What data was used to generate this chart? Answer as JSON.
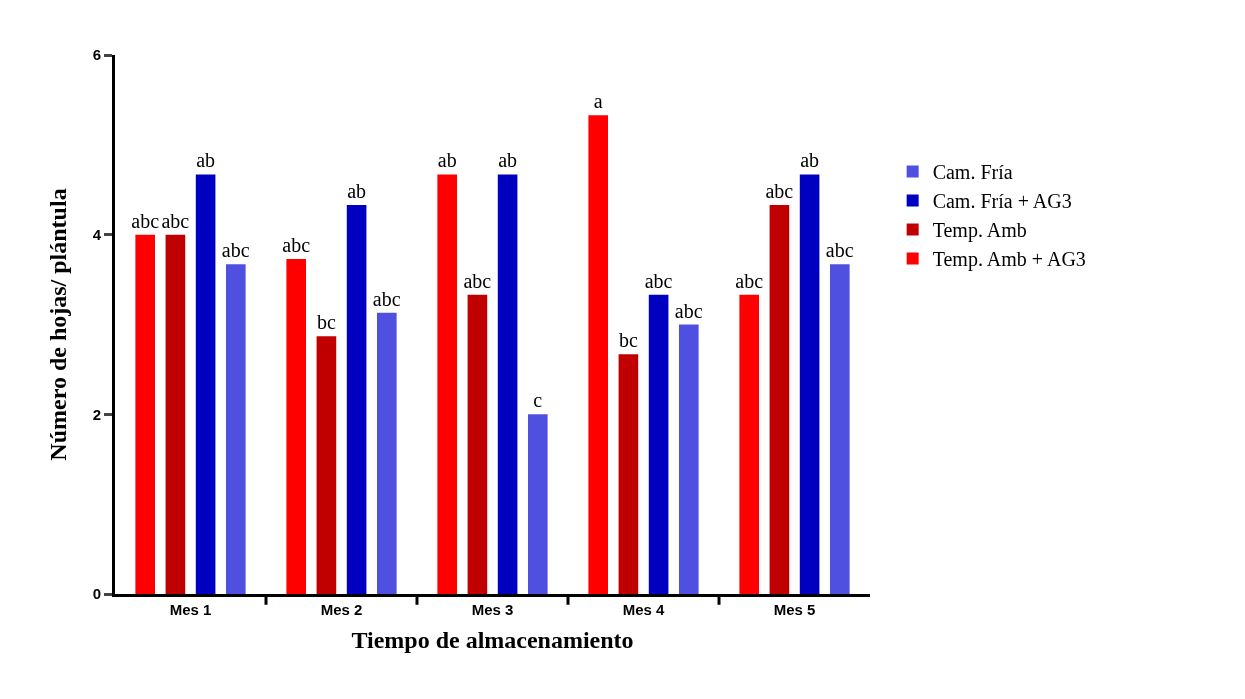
{
  "chart_data": {
    "type": "bar",
    "xlabel": "Tiempo de almacenamiento",
    "ylabel": "Número de hojas/ plántula",
    "categories": [
      "Mes 1",
      "Mes 2",
      "Mes 3",
      "Mes 4",
      "Mes 5"
    ],
    "series": [
      {
        "name": "Temp. Amb + AG3",
        "color": "#ff0000",
        "values": [
          4,
          3.73,
          4.67,
          5.33,
          3.33
        ],
        "value_labels": [
          "abc",
          "abc",
          "ab",
          "a",
          "abc"
        ]
      },
      {
        "name": "Temp. Amb",
        "color": "#c00000",
        "values": [
          4,
          2.87,
          3.33,
          2.67,
          4.33
        ],
        "value_labels": [
          "abc",
          "bc",
          "abc",
          "bc",
          "abc"
        ]
      },
      {
        "name": "Cam. Fría + AG3",
        "color": "#0000c0",
        "values": [
          4.67,
          4.33,
          4.67,
          3.33,
          4.67
        ],
        "value_labels": [
          "ab",
          "ab",
          "ab",
          "abc",
          "ab"
        ]
      },
      {
        "name": "Cam. Fría",
        "color": "#5050e0",
        "values": [
          3.67,
          3.13,
          2,
          3,
          3.67
        ],
        "value_labels": [
          "abc",
          "abc",
          "c",
          "abc",
          "abc"
        ]
      }
    ],
    "ylim": [
      0,
      6
    ],
    "yticks": [
      0,
      2,
      4,
      6
    ],
    "legend": "right"
  }
}
